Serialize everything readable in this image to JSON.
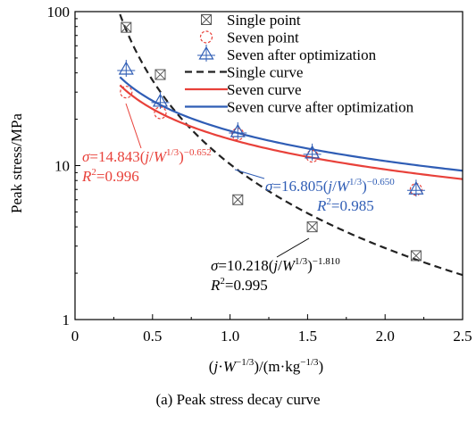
{
  "caption": "(a) Peak stress decay curve",
  "chart_data": {
    "type": "scatter",
    "title": "",
    "xlabel": {
      "prefix": "(",
      "j": "j",
      "dot": "·",
      "W": "W",
      "exp1": "−1/3",
      "mid": ")/(m·kg",
      "exp2": "−1/3",
      "suffix": ")"
    },
    "ylabel": "Peak stress/MPa",
    "xlim": [
      0,
      2.5
    ],
    "ylim": [
      1,
      100
    ],
    "yscale": "log",
    "x_ticks": [
      "0",
      "0.5",
      "1.0",
      "1.5",
      "2.0",
      "2.5"
    ],
    "y_ticks": [
      "1",
      "10",
      "100"
    ],
    "grid": false,
    "legend_position": "top-right",
    "colors": {
      "single": "#222222",
      "seven": "#e8413a",
      "optimized": "#2f5db5"
    },
    "series": [
      {
        "name": "Single point",
        "kind": "points",
        "marker": "boxed-x",
        "color": "#555555",
        "x": [
          0.33,
          0.55,
          1.05,
          1.53,
          2.2
        ],
        "y": [
          79,
          39,
          6,
          4,
          2.6
        ]
      },
      {
        "name": "Seven point",
        "kind": "points",
        "marker": "dashed-circle",
        "color": "#e8413a",
        "x": [
          0.33,
          0.55,
          1.05,
          1.53,
          2.2
        ],
        "y": [
          30,
          22,
          16,
          11.5,
          7
        ]
      },
      {
        "name": "Seven after optimization",
        "kind": "points",
        "marker": "crossed-triangle",
        "color": "#2f5db5",
        "x": [
          0.33,
          0.55,
          1.05,
          1.53,
          2.2
        ],
        "y": [
          42,
          26,
          16.5,
          12,
          7
        ]
      },
      {
        "name": "Single curve",
        "kind": "curve",
        "style": "dashed",
        "color": "#222222",
        "a": 10.218,
        "b": -1.81
      },
      {
        "name": "Seven curve",
        "kind": "curve",
        "style": "solid",
        "color": "#e8413a",
        "a": 14.843,
        "b": -0.652
      },
      {
        "name": "Seven curve after optimization",
        "kind": "curve",
        "style": "solid",
        "color": "#2f5db5",
        "a": 16.805,
        "b": -0.65
      }
    ],
    "annotations": [
      {
        "id": "eq_seven",
        "color": "#e8413a",
        "sigma": "σ",
        "eq": "=14.843(",
        "j": "j",
        "slash": "/",
        "W": "W",
        "wexp": "1/3",
        "close": ")",
        "exp": "−0.652",
        "r2_pre": "R",
        "r2_sup": "2",
        "r2_val": "=0.996"
      },
      {
        "id": "eq_opt",
        "color": "#2f5db5",
        "sigma": "σ",
        "eq": "=16.805(",
        "j": "j",
        "slash": "/",
        "W": "W",
        "wexp": "1/3",
        "close": ")",
        "exp": "−0.650",
        "r2_pre": "R",
        "r2_sup": "2",
        "r2_val": "=0.985"
      },
      {
        "id": "eq_single",
        "color": "#000000",
        "sigma": "σ",
        "eq": "=10.218(",
        "j": "j",
        "slash": "/",
        "W": "W",
        "wexp": "1/3",
        "close": ")",
        "exp": "−1.810",
        "r2_pre": "R",
        "r2_sup": "2",
        "r2_val": "=0.995"
      }
    ]
  }
}
